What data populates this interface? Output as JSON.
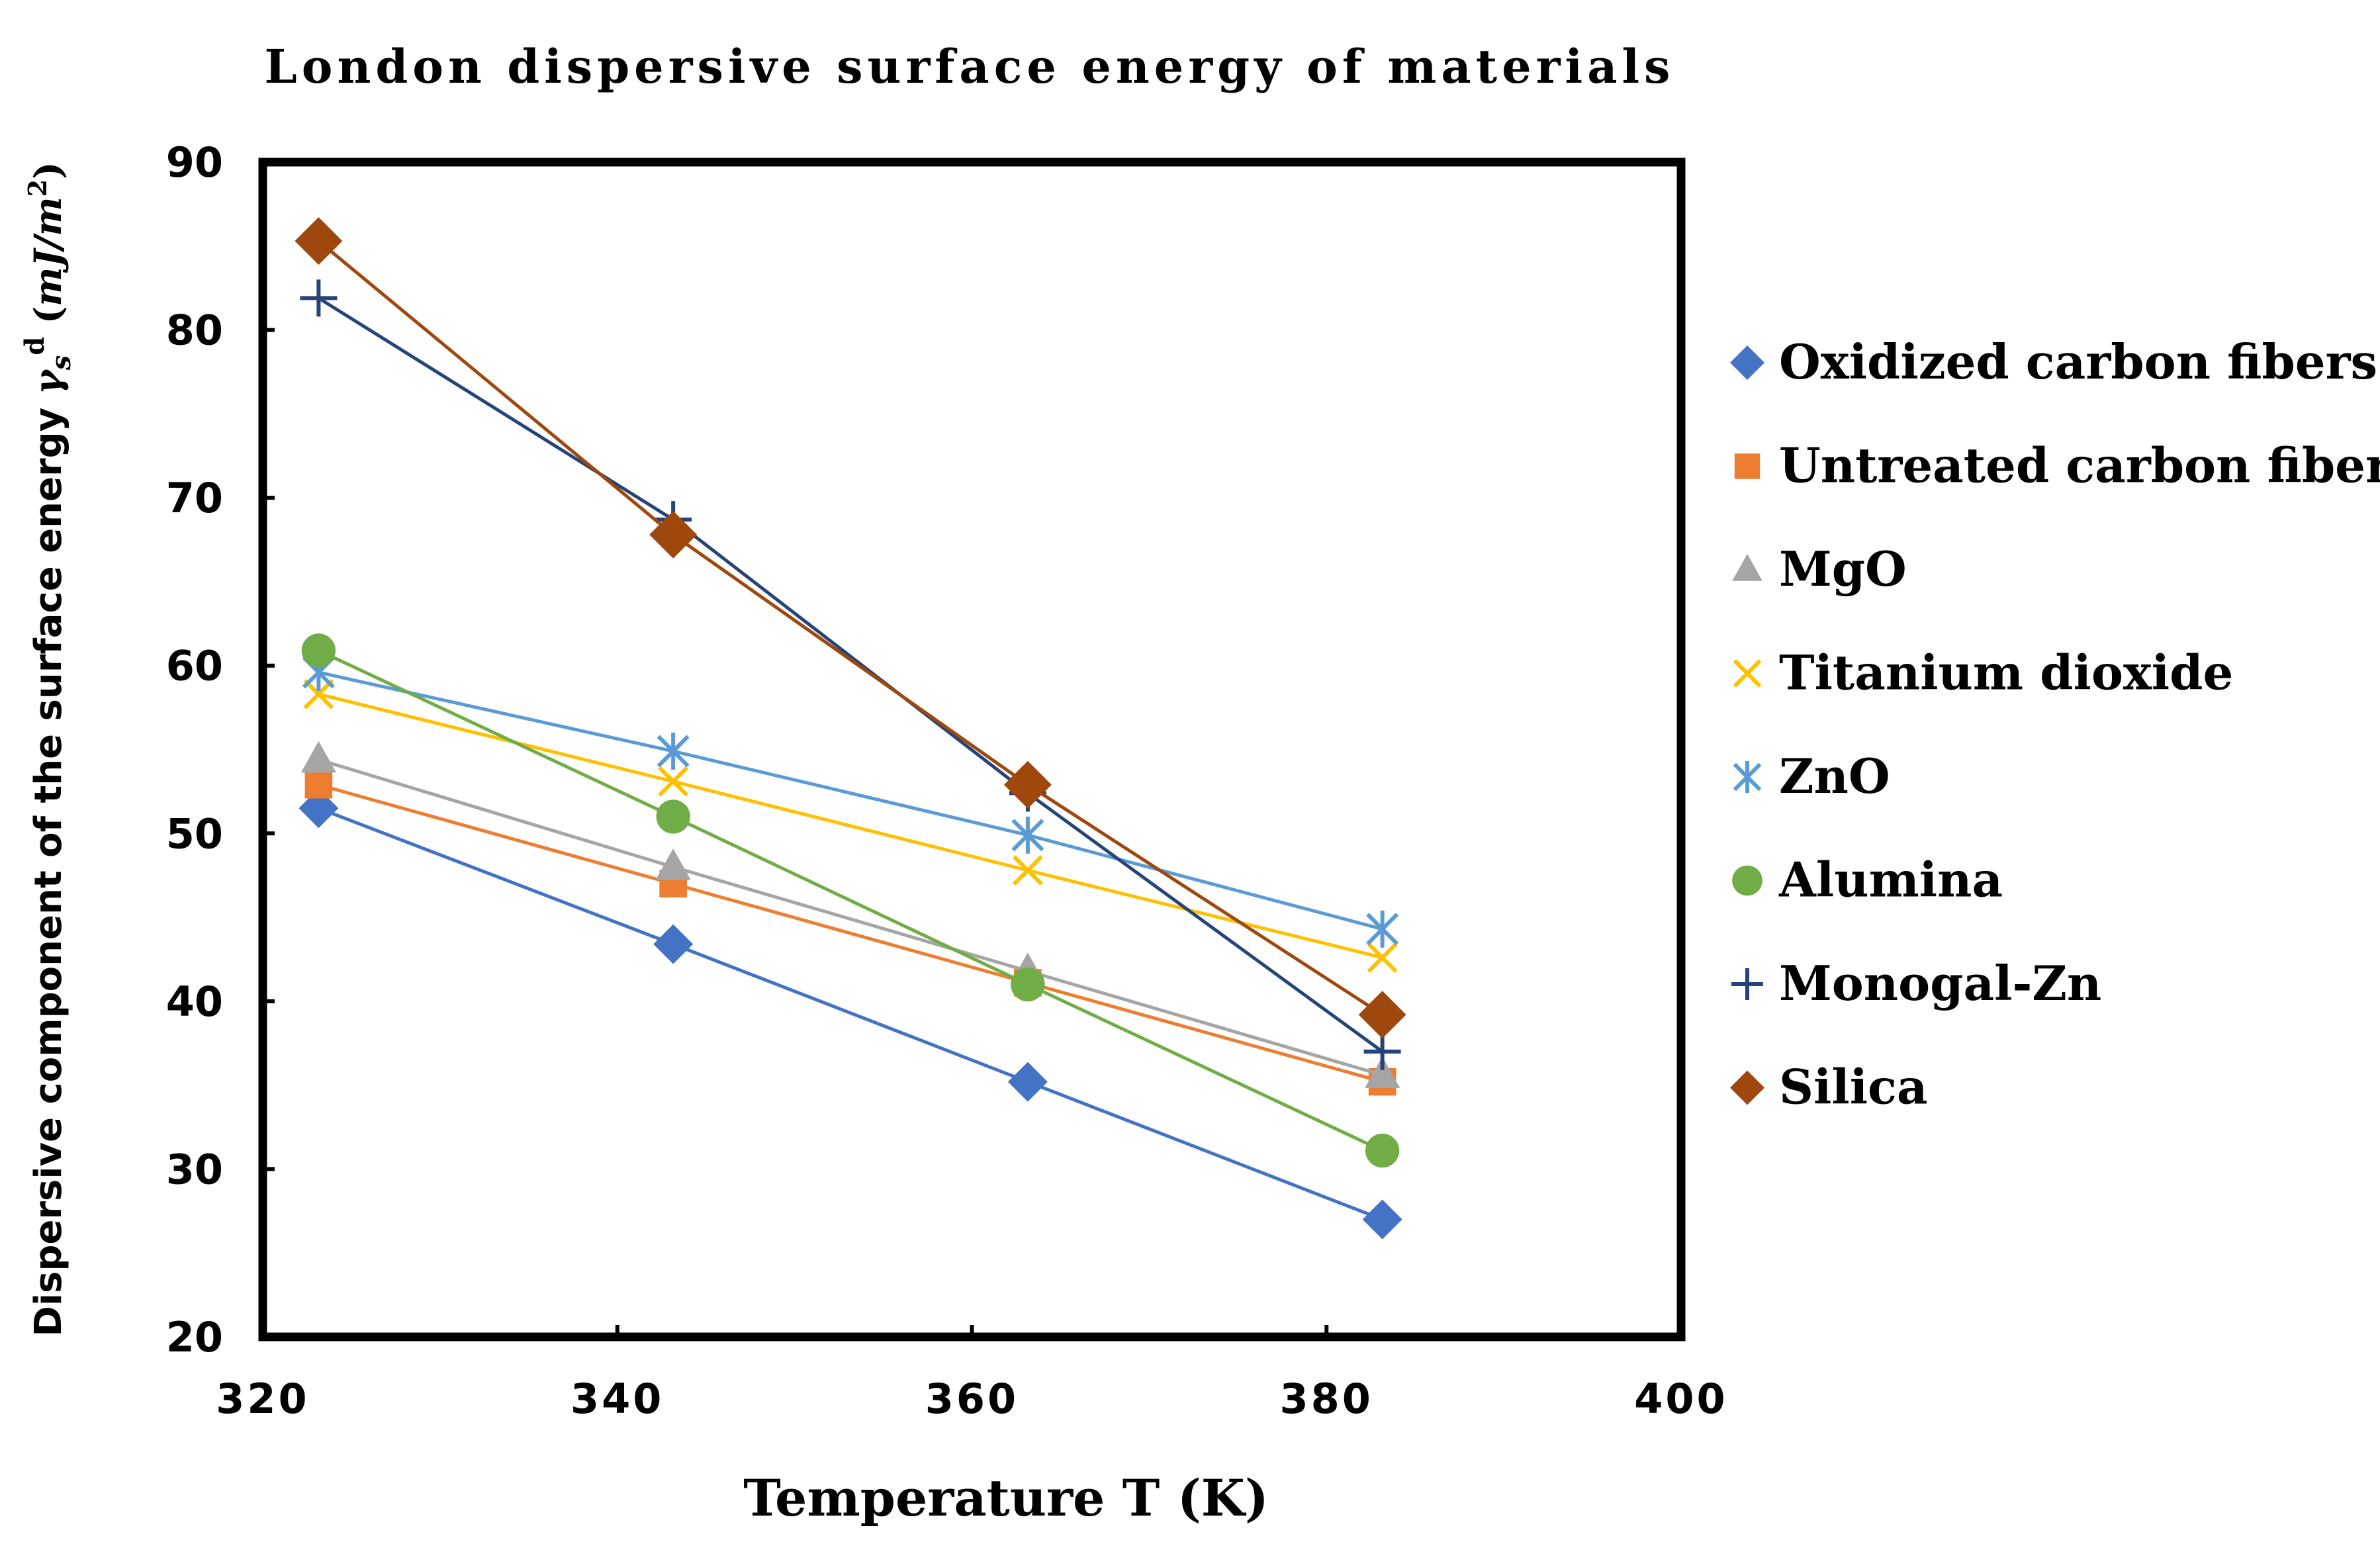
{
  "chart_data": {
    "type": "line",
    "title": "London dispersive surface energy of materials",
    "xlabel": "Temperature T (K)",
    "ylabel": {
      "main": "Dispersive component of the surface energy ",
      "symbol": "γ",
      "subscript": "s",
      "superscript": "d",
      "unit_open": " (",
      "unit_mj": "mJ",
      "unit_slash": "/",
      "unit_m": "m",
      "unit_exp": "2",
      "unit_close": ")"
    },
    "xlim": [
      320,
      400
    ],
    "ylim": [
      20,
      90
    ],
    "xticks": [
      320,
      340,
      360,
      380,
      400
    ],
    "yticks": [
      20,
      30,
      40,
      50,
      60,
      70,
      80,
      90
    ],
    "legend_position": "right",
    "series": [
      {
        "name": "Oxidized carbon fibers",
        "marker": "diamond",
        "color": "#4472C4",
        "x": [
          323.15,
          343.15,
          363.15,
          383.15
        ],
        "y": [
          51.5,
          43.4,
          35.2,
          27.0
        ]
      },
      {
        "name": "Untreated carbon fibers",
        "marker": "square",
        "color": "#ED7D31",
        "x": [
          323.15,
          343.15,
          363.15,
          383.15
        ],
        "y": [
          52.9,
          47.0,
          41.1,
          35.2
        ]
      },
      {
        "name": "MgO",
        "marker": "triangle",
        "color": "#A5A5A5",
        "x": [
          323.15,
          343.15,
          363.15,
          383.15
        ],
        "y": [
          54.4,
          48.0,
          41.8,
          35.6
        ]
      },
      {
        "name": "Titanium dioxide",
        "marker": "x",
        "color": "#FFC000",
        "x": [
          323.15,
          343.15,
          363.15,
          383.15
        ],
        "y": [
          58.3,
          53.1,
          47.8,
          42.6
        ]
      },
      {
        "name": "ZnO",
        "marker": "star",
        "color": "#5B9BD5",
        "x": [
          323.15,
          343.15,
          363.15,
          383.15
        ],
        "y": [
          59.6,
          54.9,
          49.9,
          44.3
        ]
      },
      {
        "name": "Alumina",
        "marker": "circle",
        "color": "#70AD47",
        "x": [
          323.15,
          343.15,
          363.15,
          383.15
        ],
        "y": [
          60.9,
          51.0,
          41.0,
          31.1
        ]
      },
      {
        "name": "Monogal-Zn",
        "marker": "plus",
        "color": "#264478",
        "x": [
          323.15,
          343.15,
          363.15,
          383.15
        ],
        "y": [
          81.9,
          68.7,
          52.4,
          37.0
        ]
      },
      {
        "name": "Silica",
        "marker": "diamond",
        "color": "#9E480E",
        "x": [
          323.15,
          343.15,
          363.15,
          383.15
        ],
        "y": [
          85.3,
          67.8,
          52.9,
          39.2
        ]
      }
    ]
  }
}
